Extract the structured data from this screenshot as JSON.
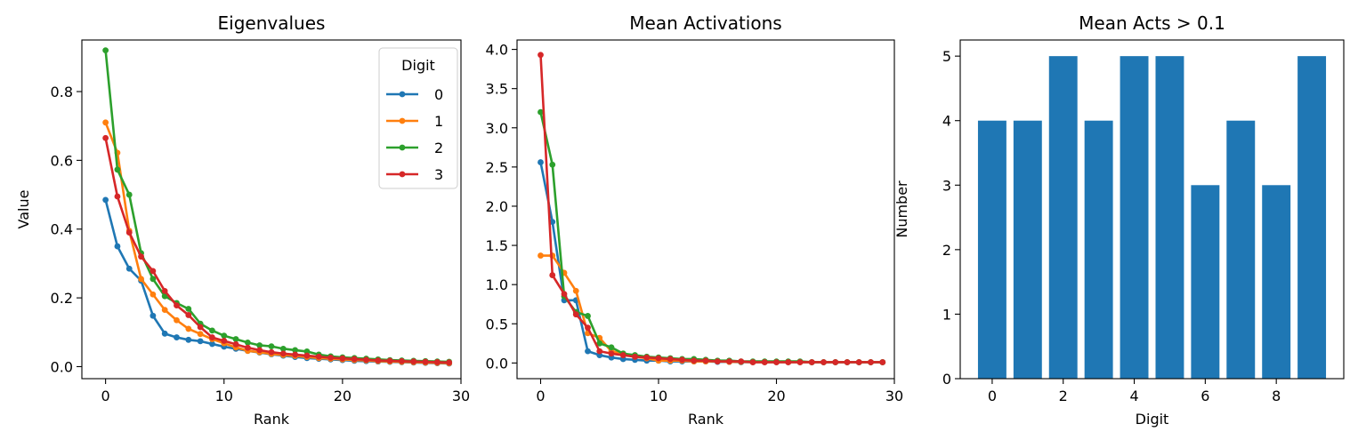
{
  "chart_data": [
    {
      "type": "line",
      "title": "Eigenvalues",
      "xlabel": "Rank",
      "ylabel": "Value",
      "xlim": [
        -2,
        30
      ],
      "ylim": [
        -0.035,
        0.95
      ],
      "xticks": [
        0,
        10,
        20,
        30
      ],
      "yticks": [
        0.0,
        0.2,
        0.4,
        0.6,
        0.8
      ],
      "legend": {
        "title": "Digit",
        "placement": "top-right"
      },
      "x": [
        0,
        1,
        2,
        3,
        4,
        5,
        6,
        7,
        8,
        9,
        10,
        11,
        12,
        13,
        14,
        15,
        16,
        17,
        18,
        19,
        20,
        21,
        22,
        23,
        24,
        25,
        26,
        27,
        28,
        29
      ],
      "series": [
        {
          "name": "0",
          "color": "#1f77b4",
          "values": [
            0.485,
            0.35,
            0.285,
            0.25,
            0.148,
            0.096,
            0.085,
            0.078,
            0.074,
            0.066,
            0.058,
            0.052,
            0.046,
            0.041,
            0.036,
            0.032,
            0.028,
            0.025,
            0.023,
            0.021,
            0.019,
            0.017,
            0.016,
            0.015,
            0.014,
            0.013,
            0.012,
            0.011,
            0.01,
            0.009
          ]
        },
        {
          "name": "1",
          "color": "#ff7f0e",
          "values": [
            0.71,
            0.622,
            0.395,
            0.255,
            0.21,
            0.165,
            0.135,
            0.11,
            0.095,
            0.08,
            0.068,
            0.056,
            0.046,
            0.042,
            0.037,
            0.034,
            0.031,
            0.028,
            0.025,
            0.023,
            0.021,
            0.019,
            0.018,
            0.016,
            0.015,
            0.014,
            0.013,
            0.012,
            0.011,
            0.01
          ]
        },
        {
          "name": "2",
          "color": "#2ca02c",
          "values": [
            0.92,
            0.573,
            0.5,
            0.33,
            0.255,
            0.205,
            0.185,
            0.168,
            0.125,
            0.105,
            0.09,
            0.08,
            0.07,
            0.062,
            0.059,
            0.052,
            0.048,
            0.044,
            0.035,
            0.03,
            0.027,
            0.025,
            0.023,
            0.021,
            0.019,
            0.018,
            0.017,
            0.016,
            0.015,
            0.014
          ]
        },
        {
          "name": "3",
          "color": "#d62728",
          "values": [
            0.665,
            0.495,
            0.39,
            0.32,
            0.278,
            0.22,
            0.178,
            0.15,
            0.115,
            0.085,
            0.075,
            0.065,
            0.055,
            0.048,
            0.042,
            0.038,
            0.035,
            0.032,
            0.029,
            0.026,
            0.024,
            0.022,
            0.02,
            0.018,
            0.017,
            0.016,
            0.015,
            0.014,
            0.013,
            0.012
          ]
        }
      ]
    },
    {
      "type": "line",
      "title": "Mean Activations",
      "xlabel": "Rank",
      "ylabel": "",
      "xlim": [
        -2,
        30
      ],
      "ylim": [
        -0.2,
        4.12
      ],
      "xticks": [
        0,
        10,
        20,
        30
      ],
      "yticks": [
        0.0,
        0.5,
        1.0,
        1.5,
        2.0,
        2.5,
        3.0,
        3.5,
        4.0
      ],
      "x": [
        0,
        1,
        2,
        3,
        4,
        5,
        6,
        7,
        8,
        9,
        10,
        11,
        12,
        13,
        14,
        15,
        16,
        17,
        18,
        19,
        20,
        21,
        22,
        23,
        24,
        25,
        26,
        27,
        28,
        29
      ],
      "series": [
        {
          "name": "0",
          "color": "#1f77b4",
          "values": [
            2.56,
            1.8,
            0.8,
            0.8,
            0.15,
            0.1,
            0.07,
            0.05,
            0.04,
            0.03,
            0.03,
            0.02,
            0.02,
            0.02,
            0.02,
            0.015,
            0.015,
            0.01,
            0.01,
            0.01,
            0.01,
            0.01,
            0.01,
            0.01,
            0.01,
            0.01,
            0.01,
            0.01,
            0.01,
            0.01
          ]
        },
        {
          "name": "1",
          "color": "#ff7f0e",
          "values": [
            1.37,
            1.37,
            1.15,
            0.92,
            0.38,
            0.32,
            0.15,
            0.12,
            0.08,
            0.06,
            0.03,
            0.03,
            0.03,
            0.02,
            0.02,
            0.02,
            0.015,
            0.015,
            0.01,
            0.01,
            0.01,
            0.01,
            0.01,
            0.01,
            0.01,
            0.01,
            0.01,
            0.01,
            0.01,
            0.01
          ]
        },
        {
          "name": "2",
          "color": "#2ca02c",
          "values": [
            3.2,
            2.53,
            0.85,
            0.65,
            0.6,
            0.25,
            0.2,
            0.12,
            0.1,
            0.08,
            0.07,
            0.06,
            0.05,
            0.05,
            0.04,
            0.03,
            0.03,
            0.02,
            0.02,
            0.02,
            0.02,
            0.02,
            0.02,
            0.01,
            0.01,
            0.01,
            0.01,
            0.01,
            0.01,
            0.01
          ]
        },
        {
          "name": "3",
          "color": "#d62728",
          "values": [
            3.93,
            1.12,
            0.88,
            0.62,
            0.45,
            0.15,
            0.12,
            0.1,
            0.08,
            0.07,
            0.06,
            0.05,
            0.04,
            0.03,
            0.03,
            0.02,
            0.02,
            0.02,
            0.01,
            0.01,
            0.01,
            0.01,
            0.01,
            0.01,
            0.01,
            0.01,
            0.01,
            0.01,
            0.01,
            0.01
          ]
        }
      ]
    },
    {
      "type": "bar",
      "title": "Mean Acts > 0.1",
      "xlabel": "Digit",
      "ylabel": "Number",
      "xlim": [
        -0.9,
        9.9
      ],
      "ylim": [
        0,
        5.25
      ],
      "xticks": [
        0,
        2,
        4,
        6,
        8
      ],
      "yticks": [
        0,
        1,
        2,
        3,
        4,
        5
      ],
      "color": "#1f77b4",
      "categories": [
        0,
        1,
        2,
        3,
        4,
        5,
        6,
        7,
        8,
        9
      ],
      "values": [
        4,
        4,
        5,
        4,
        5,
        5,
        3,
        4,
        3,
        5
      ]
    }
  ]
}
